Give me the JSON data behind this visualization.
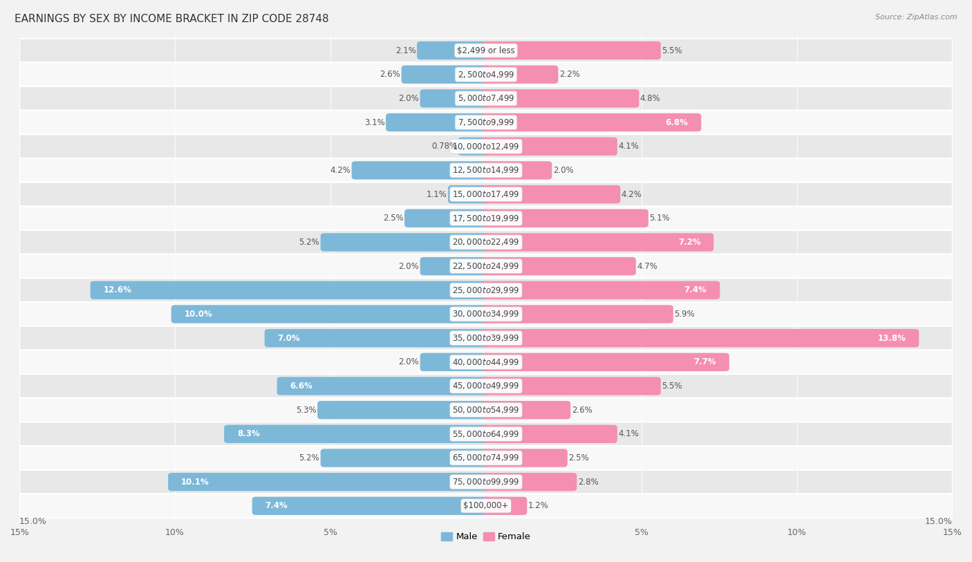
{
  "title": "EARNINGS BY SEX BY INCOME BRACKET IN ZIP CODE 28748",
  "source": "Source: ZipAtlas.com",
  "categories": [
    "$2,499 or less",
    "$2,500 to $4,999",
    "$5,000 to $7,499",
    "$7,500 to $9,999",
    "$10,000 to $12,499",
    "$12,500 to $14,999",
    "$15,000 to $17,499",
    "$17,500 to $19,999",
    "$20,000 to $22,499",
    "$22,500 to $24,999",
    "$25,000 to $29,999",
    "$30,000 to $34,999",
    "$35,000 to $39,999",
    "$40,000 to $44,999",
    "$45,000 to $49,999",
    "$50,000 to $54,999",
    "$55,000 to $64,999",
    "$65,000 to $74,999",
    "$75,000 to $99,999",
    "$100,000+"
  ],
  "male_values": [
    2.1,
    2.6,
    2.0,
    3.1,
    0.78,
    4.2,
    1.1,
    2.5,
    5.2,
    2.0,
    12.6,
    10.0,
    7.0,
    2.0,
    6.6,
    5.3,
    8.3,
    5.2,
    10.1,
    7.4
  ],
  "female_values": [
    5.5,
    2.2,
    4.8,
    6.8,
    4.1,
    2.0,
    4.2,
    5.1,
    7.2,
    4.7,
    7.4,
    5.9,
    13.8,
    7.7,
    5.5,
    2.6,
    4.1,
    2.5,
    2.8,
    1.2
  ],
  "male_color": "#7db8d8",
  "female_color": "#f48fb1",
  "male_label": "Male",
  "female_label": "Female",
  "xlim": 15.0,
  "bar_height": 0.52,
  "bg_color": "#f2f2f2",
  "row_color_odd": "#e8e8e8",
  "row_color_even": "#f8f8f8",
  "title_fontsize": 11,
  "value_fontsize": 8.5,
  "category_fontsize": 8.5,
  "axis_tick_fontsize": 9,
  "inside_label_threshold": 6.5
}
